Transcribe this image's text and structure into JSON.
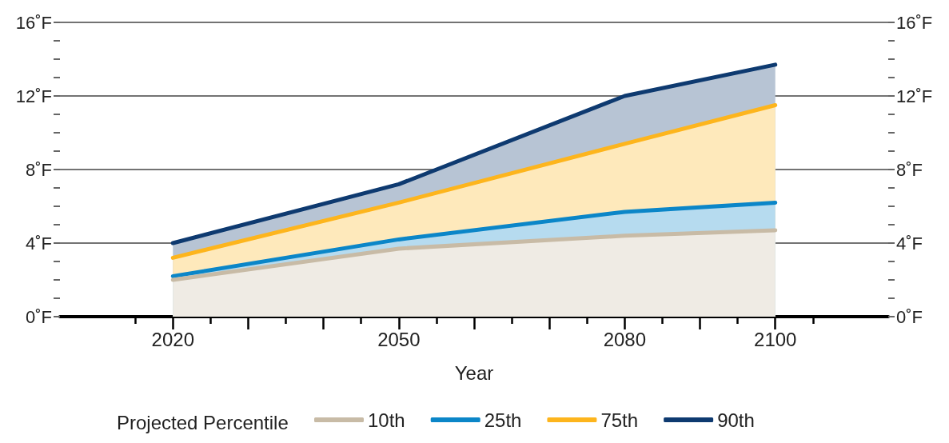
{
  "chart_data": {
    "type": "area",
    "xlabel": "Year",
    "legend_title": "Projected Percentile",
    "legend": "bottom",
    "grid": "y",
    "marker": "none",
    "line_style": "solid",
    "x": [
      2020,
      2050,
      2080,
      2100
    ],
    "xlim": [
      2005,
      2115
    ],
    "xticks": [
      {
        "value": 2015,
        "label": null
      },
      {
        "value": 2020,
        "label": "2020"
      },
      {
        "value": 2025,
        "label": null
      },
      {
        "value": 2030,
        "label": null
      },
      {
        "value": 2035,
        "label": null
      },
      {
        "value": 2040,
        "label": null
      },
      {
        "value": 2045,
        "label": null
      },
      {
        "value": 2050,
        "label": "2050"
      },
      {
        "value": 2055,
        "label": null
      },
      {
        "value": 2060,
        "label": null
      },
      {
        "value": 2065,
        "label": null
      },
      {
        "value": 2070,
        "label": null
      },
      {
        "value": 2075,
        "label": null
      },
      {
        "value": 2080,
        "label": "2080"
      },
      {
        "value": 2085,
        "label": null
      },
      {
        "value": 2090,
        "label": null
      },
      {
        "value": 2095,
        "label": null
      },
      {
        "value": 2100,
        "label": "2100"
      },
      {
        "value": 2105,
        "label": null
      }
    ],
    "ylim": [
      0,
      16
    ],
    "yticks": [
      {
        "value": 0,
        "label": "0˚F"
      },
      {
        "value": 1,
        "label": null
      },
      {
        "value": 2,
        "label": null
      },
      {
        "value": 3,
        "label": null
      },
      {
        "value": 4,
        "label": "4˚F"
      },
      {
        "value": 5,
        "label": null
      },
      {
        "value": 6,
        "label": null
      },
      {
        "value": 7,
        "label": null
      },
      {
        "value": 8,
        "label": "8˚F"
      },
      {
        "value": 9,
        "label": null
      },
      {
        "value": 10,
        "label": null
      },
      {
        "value": 11,
        "label": null
      },
      {
        "value": 12,
        "label": "12˚F"
      },
      {
        "value": 13,
        "label": null
      },
      {
        "value": 14,
        "label": null
      },
      {
        "value": 15,
        "label": null
      },
      {
        "value": 16,
        "label": "16˚F"
      }
    ],
    "y2lim": [
      0,
      16
    ],
    "y2ticks": [
      {
        "value": 0,
        "label": "0˚F"
      },
      {
        "value": 1,
        "label": null
      },
      {
        "value": 2,
        "label": null
      },
      {
        "value": 3,
        "label": null
      },
      {
        "value": 4,
        "label": "4˚F"
      },
      {
        "value": 5,
        "label": null
      },
      {
        "value": 6,
        "label": null
      },
      {
        "value": 7,
        "label": null
      },
      {
        "value": 8,
        "label": "8˚F"
      },
      {
        "value": 9,
        "label": null
      },
      {
        "value": 10,
        "label": null
      },
      {
        "value": 11,
        "label": null
      },
      {
        "value": 12,
        "label": "12˚F"
      },
      {
        "value": 13,
        "label": null
      },
      {
        "value": 14,
        "label": null
      },
      {
        "value": 15,
        "label": null
      },
      {
        "value": 16,
        "label": "16˚F"
      }
    ],
    "series": [
      {
        "name": "10th",
        "color": "#c8bba6",
        "values": [
          2.0,
          3.7,
          4.4,
          4.7
        ]
      },
      {
        "name": "25th",
        "color": "#0b86c8",
        "values": [
          2.2,
          4.2,
          5.7,
          6.2
        ]
      },
      {
        "name": "75th",
        "color": "#fdb51d",
        "values": [
          3.2,
          6.2,
          9.4,
          11.5
        ]
      },
      {
        "name": "90th",
        "color": "#0e3a70",
        "values": [
          4.0,
          7.2,
          12.0,
          13.7
        ]
      }
    ]
  }
}
